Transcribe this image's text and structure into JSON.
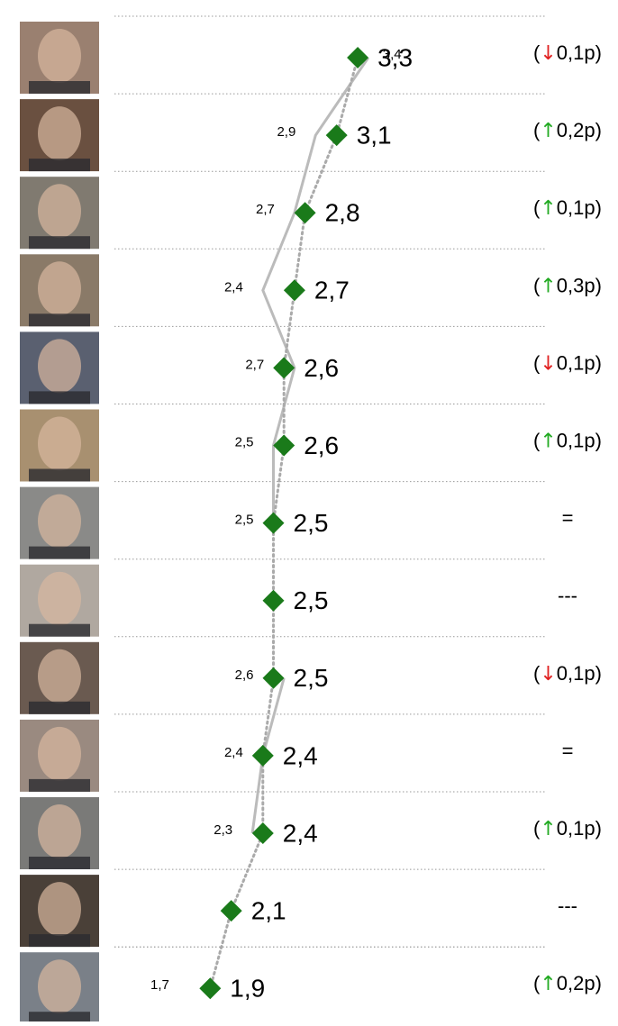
{
  "chart_data": {
    "type": "line",
    "categories": [
      null,
      null,
      null,
      null,
      null,
      null,
      null,
      null,
      null,
      null,
      null,
      null,
      null
    ],
    "xlim": [
      0,
      5
    ],
    "series": [
      {
        "name": null,
        "role": "current",
        "color": "#1a7a1a",
        "line_color": "#aaaaaa",
        "values": [
          3.3,
          3.1,
          2.8,
          2.7,
          2.6,
          2.6,
          2.5,
          2.5,
          2.5,
          2.4,
          2.4,
          2.1,
          1.9
        ],
        "value_labels": [
          "3,3",
          "3,1",
          "2,8",
          "2,7",
          "2,6",
          "2,6",
          "2,5",
          "2,5",
          "2,5",
          "2,4",
          "2,4",
          "2,1",
          "1,9"
        ]
      },
      {
        "name": null,
        "role": "previous",
        "color": "#bbbbbb",
        "values": [
          3.4,
          2.9,
          2.7,
          2.4,
          2.7,
          2.5,
          2.5,
          null,
          2.6,
          2.4,
          2.3,
          null,
          1.7
        ],
        "value_labels": [
          "3,4",
          "2,9",
          "2,7",
          "2,4",
          "2,7",
          "2,5",
          "2,5",
          null,
          "2,6",
          "2,4",
          "2,3",
          null,
          "1,7"
        ]
      }
    ],
    "changes": [
      "(↓0,1p)",
      "(↑0,2p)",
      "(↑0,1p)",
      "(↑0,3p)",
      "(↓0,1p)",
      "(↑0,1p)",
      "=",
      "---",
      "(↓0,1p)",
      "=",
      "(↑0,1p)",
      "---",
      "(↑0,2p)"
    ],
    "arrow_colors": {
      "↓": "#e02020",
      "↑": "#22aa22"
    }
  }
}
